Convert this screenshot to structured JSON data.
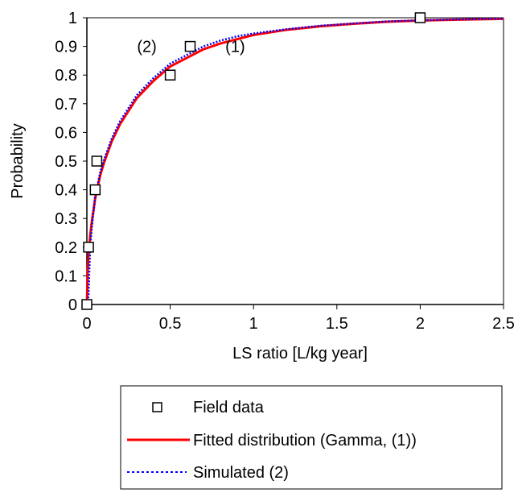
{
  "chart_data": {
    "type": "line",
    "title": "",
    "xlabel": "LS ratio [L/kg year]",
    "ylabel": "Probability",
    "xlim": [
      0,
      2.5
    ],
    "ylim": [
      0,
      1
    ],
    "x_ticks": [
      "0",
      "0.5",
      "1",
      "1.5",
      "2",
      "2.5"
    ],
    "y_ticks": [
      "0",
      "0.1",
      "0.2",
      "0.3",
      "0.4",
      "0.5",
      "0.6",
      "0.7",
      "0.8",
      "0.9",
      "1"
    ],
    "grid": false,
    "legend_position": "bottom",
    "annotations": [
      {
        "text": "(2)",
        "x": 0.36,
        "y": 0.9
      },
      {
        "text": "(1)",
        "x": 0.89,
        "y": 0.9
      }
    ],
    "series": [
      {
        "name": "Field data",
        "style": "markers",
        "marker": "square",
        "color": "#000000",
        "points": [
          {
            "x": 0.0,
            "y": 0.0
          },
          {
            "x": 0.01,
            "y": 0.2
          },
          {
            "x": 0.05,
            "y": 0.4
          },
          {
            "x": 0.06,
            "y": 0.5
          },
          {
            "x": 0.5,
            "y": 0.8
          },
          {
            "x": 0.62,
            "y": 0.9
          },
          {
            "x": 2.0,
            "y": 1.0
          }
        ]
      },
      {
        "name": "Fitted distribution (Gamma, (1))",
        "style": "solid",
        "color": "#ff0000",
        "points": [
          {
            "x": 0.0,
            "y": 0.0
          },
          {
            "x": 0.005,
            "y": 0.12
          },
          {
            "x": 0.01,
            "y": 0.17
          },
          {
            "x": 0.02,
            "y": 0.24
          },
          {
            "x": 0.03,
            "y": 0.29
          },
          {
            "x": 0.05,
            "y": 0.37
          },
          {
            "x": 0.08,
            "y": 0.45
          },
          {
            "x": 0.1,
            "y": 0.49
          },
          {
            "x": 0.15,
            "y": 0.57
          },
          {
            "x": 0.2,
            "y": 0.63
          },
          {
            "x": 0.3,
            "y": 0.72
          },
          {
            "x": 0.4,
            "y": 0.78
          },
          {
            "x": 0.5,
            "y": 0.83
          },
          {
            "x": 0.6,
            "y": 0.86
          },
          {
            "x": 0.7,
            "y": 0.89
          },
          {
            "x": 0.8,
            "y": 0.91
          },
          {
            "x": 0.9,
            "y": 0.925
          },
          {
            "x": 1.0,
            "y": 0.94
          },
          {
            "x": 1.2,
            "y": 0.958
          },
          {
            "x": 1.4,
            "y": 0.97
          },
          {
            "x": 1.6,
            "y": 0.979
          },
          {
            "x": 1.8,
            "y": 0.986
          },
          {
            "x": 2.0,
            "y": 0.99
          },
          {
            "x": 2.2,
            "y": 0.993
          },
          {
            "x": 2.5,
            "y": 0.996
          }
        ]
      },
      {
        "name": "Simulated (2)",
        "style": "dotted",
        "color": "#0000ff",
        "points": [
          {
            "x": 0.0,
            "y": 0.0
          },
          {
            "x": 0.01,
            "y": 0.03
          },
          {
            "x": 0.015,
            "y": 0.12
          },
          {
            "x": 0.02,
            "y": 0.2
          },
          {
            "x": 0.03,
            "y": 0.27
          },
          {
            "x": 0.05,
            "y": 0.38
          },
          {
            "x": 0.08,
            "y": 0.46
          },
          {
            "x": 0.1,
            "y": 0.5
          },
          {
            "x": 0.15,
            "y": 0.58
          },
          {
            "x": 0.2,
            "y": 0.64
          },
          {
            "x": 0.3,
            "y": 0.73
          },
          {
            "x": 0.4,
            "y": 0.79
          },
          {
            "x": 0.5,
            "y": 0.84
          },
          {
            "x": 0.6,
            "y": 0.87
          },
          {
            "x": 0.7,
            "y": 0.9
          },
          {
            "x": 0.8,
            "y": 0.92
          },
          {
            "x": 0.9,
            "y": 0.935
          },
          {
            "x": 1.0,
            "y": 0.945
          },
          {
            "x": 1.2,
            "y": 0.96
          },
          {
            "x": 1.4,
            "y": 0.972
          },
          {
            "x": 1.6,
            "y": 0.98
          },
          {
            "x": 1.8,
            "y": 0.987
          },
          {
            "x": 2.0,
            "y": 0.991
          },
          {
            "x": 2.2,
            "y": 0.994
          },
          {
            "x": 2.5,
            "y": 0.997
          }
        ]
      }
    ]
  }
}
